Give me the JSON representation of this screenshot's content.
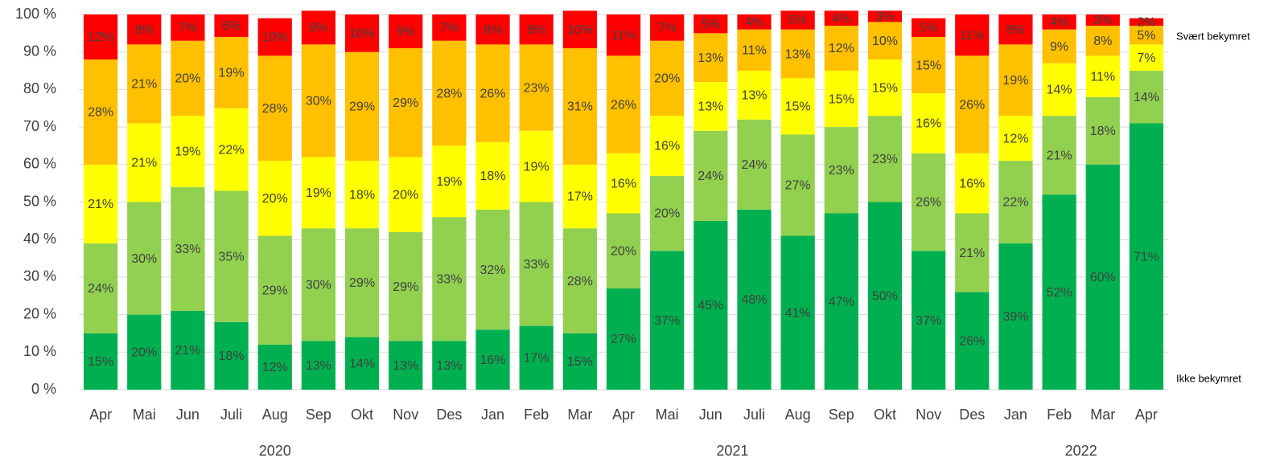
{
  "chart_data": {
    "type": "stacked_bar",
    "categories": [
      "Apr",
      "Mai",
      "Jun",
      "Juli",
      "Aug",
      "Sep",
      "Okt",
      "Nov",
      "Des",
      "Jan",
      "Feb",
      "Mar",
      "Apr",
      "Mai",
      "Jun",
      "Juli",
      "Aug",
      "Sep",
      "Okt",
      "Nov",
      "Des",
      "Jan",
      "Feb",
      "Mar",
      "Apr"
    ],
    "groups": [
      {
        "label": "2020",
        "first": 0,
        "last": 8
      },
      {
        "label": "2021",
        "first": 9,
        "last": 20
      },
      {
        "label": "2022",
        "first": 21,
        "last": 24
      }
    ],
    "series": [
      {
        "name": "Ikke bekymret",
        "color": "#00b050",
        "values": [
          15,
          20,
          21,
          18,
          12,
          13,
          14,
          13,
          13,
          16,
          17,
          15,
          27,
          37,
          45,
          48,
          41,
          47,
          50,
          37,
          26,
          39,
          52,
          60,
          71
        ],
        "value_labels": [
          "15%",
          "20%",
          "21%",
          "18%",
          "12%",
          "13%",
          "14%",
          "13%",
          "13%",
          "16%",
          "17%",
          "15%",
          "27%",
          "37%",
          "45%",
          "48%",
          "41%",
          "47%",
          "50%",
          "37%",
          "26%",
          "39%",
          "52%",
          "60%",
          "71%"
        ]
      },
      {
        "color": "#92d050",
        "values": [
          24,
          30,
          33,
          35,
          29,
          30,
          29,
          29,
          33,
          32,
          33,
          28,
          20,
          20,
          24,
          24,
          27,
          23,
          23,
          26,
          21,
          22,
          21,
          18,
          14
        ],
        "value_labels": [
          "24%",
          "30%",
          "33%",
          "35%",
          "29%",
          "30%",
          "29%",
          "29%",
          "33%",
          "32%",
          "33%",
          "28%",
          "20%",
          "20%",
          "24%",
          "24%",
          "27%",
          "23%",
          "23%",
          "26%",
          "21%",
          "22%",
          "21%",
          "18%",
          "14%"
        ]
      },
      {
        "color": "#ffff00",
        "values": [
          21,
          21,
          19,
          22,
          20,
          19,
          18,
          20,
          19,
          18,
          19,
          17,
          16,
          16,
          13,
          13,
          15,
          15,
          15,
          16,
          16,
          12,
          14,
          11,
          7
        ],
        "value_labels": [
          "21%",
          "21%",
          "19%",
          "22%",
          "20%",
          "19%",
          "18%",
          "20%",
          "19%",
          "18%",
          "19%",
          "17%",
          "16%",
          "16%",
          "13%",
          "13%",
          "15%",
          "15%",
          "15%",
          "16%",
          "16%",
          "12%",
          "14%",
          "11%",
          "7%"
        ]
      },
      {
        "color": "#ffc000",
        "values": [
          28,
          21,
          20,
          19,
          28,
          30,
          29,
          29,
          28,
          26,
          23,
          31,
          26,
          20,
          13,
          11,
          13,
          12,
          10,
          15,
          26,
          19,
          9,
          8,
          5
        ],
        "value_labels": [
          "28%",
          "21%",
          "20%",
          "19%",
          "28%",
          "30%",
          "29%",
          "29%",
          "28%",
          "26%",
          "23%",
          "31%",
          "26%",
          "20%",
          "13%",
          "11%",
          "13%",
          "12%",
          "10%",
          "15%",
          "26%",
          "19%",
          "9%",
          "8%",
          "5%"
        ]
      },
      {
        "name": "Svært bekymret",
        "color": "#ff0000",
        "values": [
          12,
          8,
          7,
          6,
          10,
          9,
          10,
          9,
          7,
          8,
          8,
          10,
          11,
          7,
          5,
          4,
          5,
          4,
          3,
          5,
          11,
          8,
          4,
          3,
          2
        ],
        "value_labels": [
          "12%",
          "8%",
          "7%",
          "6%",
          "10%",
          "9%",
          "10%",
          "9%",
          "7%",
          "8%",
          "8%",
          "10%",
          "11%",
          "7%",
          "5%",
          "4%",
          "5%",
          "4%",
          "3%",
          "5%",
          "11%",
          "8%",
          "4%",
          "3%",
          "2%"
        ]
      }
    ],
    "ylim": [
      0,
      100
    ],
    "yticks": [
      {
        "value": 0,
        "label": "0 %"
      },
      {
        "value": 10,
        "label": "10 %"
      },
      {
        "value": 20,
        "label": "20 %"
      },
      {
        "value": 30,
        "label": "30 %"
      },
      {
        "value": 40,
        "label": "40 %"
      },
      {
        "value": 50,
        "label": "50 %"
      },
      {
        "value": 60,
        "label": "60 %"
      },
      {
        "value": 70,
        "label": "70 %"
      },
      {
        "value": 80,
        "label": "80 %"
      },
      {
        "value": 90,
        "label": "90 %"
      },
      {
        "value": 100,
        "label": "100 %"
      }
    ],
    "grid": true
  }
}
